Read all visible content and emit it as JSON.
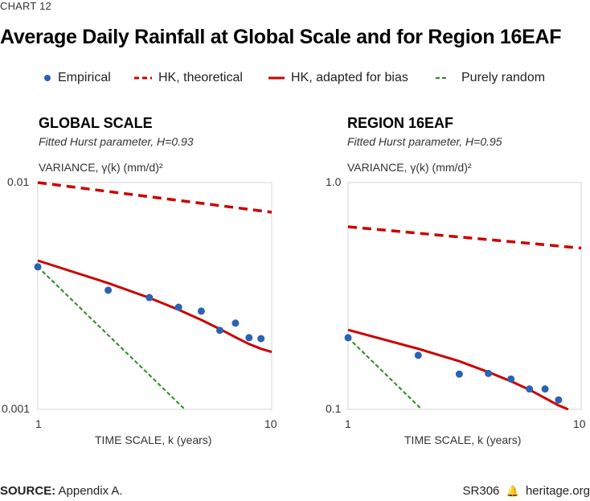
{
  "chart_label": "CHART 12",
  "title": "Average Daily Rainfall at Global Scale and for Region 16EAF",
  "legend": [
    {
      "label": "Empirical",
      "symbol": "dot",
      "color": "#2a62b5"
    },
    {
      "label": "HK, theoretical",
      "symbol": "dash",
      "color": "#cc0000"
    },
    {
      "label": "HK, adapted for bias",
      "symbol": "line",
      "color": "#cc0000"
    },
    {
      "label": "Purely random",
      "symbol": "dash-small",
      "color": "#2b8a1f"
    }
  ],
  "colors": {
    "empirical": "#2a62b5",
    "hk": "#cc0000",
    "random": "#2b8a1f",
    "frame": "#e3e3e3"
  },
  "footer": {
    "source_label": "SOURCE:",
    "source_text": "Appendix A.",
    "report_id": "SR306",
    "site": "heritage.org"
  },
  "chart_data": [
    {
      "type": "line",
      "title": "GLOBAL SCALE",
      "subtitle": "Fitted Hurst parameter, H=0.93",
      "ylabel": "VARIANCE, γ(k) (mm/d)²",
      "xlabel": "TIME SCALE, k (years)",
      "xscale": "log",
      "yscale": "log",
      "xlim": [
        1,
        10
      ],
      "ylim": [
        0.001,
        0.01
      ],
      "xticks": [
        "1",
        "10"
      ],
      "yticks": [
        "0.001",
        "0.01"
      ],
      "grid": false,
      "series": [
        {
          "name": "Empirical",
          "kind": "scatter",
          "x": [
            1,
            2,
            3,
            4,
            5,
            6,
            7,
            8,
            9
          ],
          "y": [
            0.00425,
            0.00335,
            0.00311,
            0.00282,
            0.00271,
            0.00223,
            0.0024,
            0.00207,
            0.00205
          ]
        },
        {
          "name": "HK, theoretical",
          "kind": "dashed",
          "x": [
            1,
            10
          ],
          "y": [
            0.01,
            0.0074
          ]
        },
        {
          "name": "HK, adapted for bias",
          "kind": "solid",
          "x": [
            1,
            2,
            3,
            4,
            5,
            6,
            7,
            8,
            9,
            10
          ],
          "y": [
            0.00453,
            0.0036,
            0.0031,
            0.00275,
            0.00248,
            0.00226,
            0.00208,
            0.00194,
            0.00185,
            0.00179
          ]
        },
        {
          "name": "Purely random",
          "kind": "dotted",
          "x": [
            1,
            4.25
          ],
          "y": [
            0.00425,
            0.001
          ]
        }
      ]
    },
    {
      "type": "line",
      "title": "REGION 16EAF",
      "subtitle": "Fitted Hurst parameter, H=0.95",
      "ylabel": "VARIANCE, γ(k) (mm/d)²",
      "xlabel": "TIME SCALE, k (years)",
      "xscale": "log",
      "yscale": "log",
      "xlim": [
        1,
        10
      ],
      "ylim": [
        0.1,
        1.0
      ],
      "xticks": [
        "1",
        "10"
      ],
      "yticks": [
        "0.1",
        "1.0"
      ],
      "grid": false,
      "series": [
        {
          "name": "Empirical",
          "kind": "scatter",
          "x": [
            1,
            2,
            3,
            4,
            5,
            6,
            7,
            8
          ],
          "y": [
            0.207,
            0.173,
            0.143,
            0.144,
            0.136,
            0.123,
            0.123,
            0.11
          ]
        },
        {
          "name": "HK, theoretical",
          "kind": "dashed",
          "x": [
            1,
            10
          ],
          "y": [
            0.638,
            0.514
          ]
        },
        {
          "name": "HK, adapted for bias",
          "kind": "solid",
          "x": [
            1,
            2,
            3,
            4,
            5,
            6,
            7,
            8,
            8.8
          ],
          "y": [
            0.224,
            0.185,
            0.163,
            0.146,
            0.133,
            0.122,
            0.112,
            0.104,
            0.1
          ]
        },
        {
          "name": "Purely random",
          "kind": "dotted",
          "x": [
            1,
            2.07
          ],
          "y": [
            0.207,
            0.1
          ]
        }
      ]
    }
  ]
}
